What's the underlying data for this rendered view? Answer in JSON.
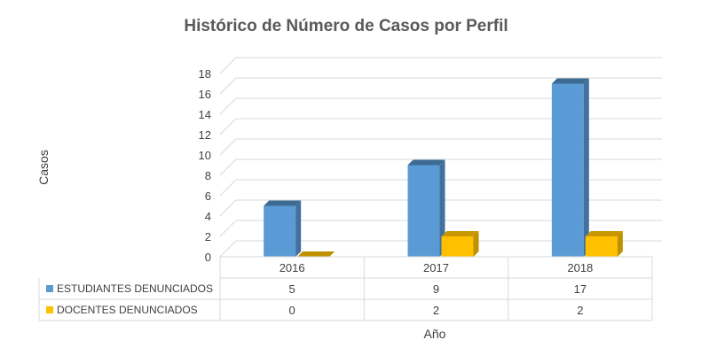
{
  "chart_data": {
    "type": "bar",
    "title": "Histórico de Número de Casos por Perfil",
    "xlabel": "Año",
    "ylabel": "Casos",
    "categories": [
      "2016",
      "2017",
      "2018"
    ],
    "series": [
      {
        "name": "ESTUDIANTES DENUNCIADOS",
        "values": [
          5,
          9,
          17
        ],
        "color": "#5b9bd5",
        "side_color": "#41719c",
        "top_color": "#3c6a93"
      },
      {
        "name": "DOCENTES DENUNCIADOS",
        "values": [
          0,
          2,
          2
        ],
        "color": "#ffc000",
        "side_color": "#bf9000",
        "top_color": "#c99700"
      }
    ],
    "ylim": [
      0,
      18
    ],
    "yticks": [
      0,
      2,
      4,
      6,
      8,
      10,
      12,
      14,
      16,
      18
    ],
    "grid": true,
    "legend": "data-table"
  }
}
